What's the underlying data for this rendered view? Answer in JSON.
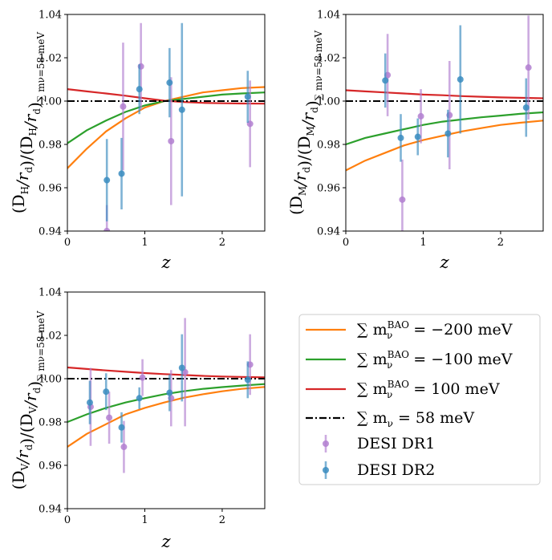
{
  "chart_data": {
    "type": "errorbar+line",
    "legend": {
      "placement": "bottom-right",
      "entries": [
        {
          "key": "orange",
          "math": "∑ m",
          "sub": "ν",
          "sup": "BAO",
          "rest": " = −200 meV"
        },
        {
          "key": "green",
          "math": "∑ m",
          "sub": "ν",
          "sup": "BAO",
          "rest": " = −100 meV"
        },
        {
          "key": "red",
          "math": "∑ m",
          "sub": "ν",
          "sup": "BAO",
          "rest": " = 100 meV"
        },
        {
          "key": "black",
          "math": "∑ m",
          "sub": "ν",
          "sup": "",
          "rest": " = 58 meV"
        },
        {
          "key": "dr1",
          "label": "DESI DR1"
        },
        {
          "key": "dr2",
          "label": "DESI DR2"
        }
      ]
    },
    "colors": {
      "orange": "#ff7f0e",
      "green": "#2ca02c",
      "red": "#d62728",
      "black": "#000000",
      "dr1": "#b27fd0",
      "dr2": "#3a8cc0"
    },
    "axes": {
      "xlim": [
        0,
        2.55
      ],
      "ylim": [
        0.94,
        1.04
      ],
      "xticks": [
        "0",
        "1",
        "2"
      ],
      "xtick_values": [
        0,
        1,
        2
      ],
      "yticks": [
        "0.94",
        "0.96",
        "0.98",
        "1.00",
        "1.02",
        "1.04"
      ],
      "ytick_values": [
        0.94,
        0.96,
        0.98,
        1.0,
        1.02,
        1.04
      ],
      "xlabel": "z"
    },
    "panels": [
      {
        "id": "DH",
        "ylabel_main": "(D",
        "ylabel_sub1": "H",
        "ylabel_mid": "/r",
        "ylabel_sub2": "d",
        "ylabel_mid2": ")/(D",
        "ylabel_sub3": "H",
        "ylabel_mid3": "/r",
        "ylabel_sub4": "d",
        "ylabel_end": ")",
        "ylabel_subscript": "∑ mν=58 meV",
        "curves": {
          "orange": {
            "x": [
              0,
              0.25,
              0.5,
              0.75,
              1.0,
              1.25,
              1.5,
              1.75,
              2.0,
              2.25,
              2.55
            ],
            "y": [
              0.969,
              0.978,
              0.986,
              0.992,
              0.997,
              1.0,
              1.002,
              1.004,
              1.005,
              1.006,
              1.0065
            ]
          },
          "green": {
            "x": [
              0,
              0.25,
              0.5,
              0.75,
              1.0,
              1.25,
              1.5,
              1.75,
              2.0,
              2.25,
              2.55
            ],
            "y": [
              0.9805,
              0.9865,
              0.991,
              0.995,
              0.998,
              1.0,
              1.001,
              1.002,
              1.003,
              1.0035,
              1.004
            ]
          },
          "red": {
            "x": [
              0,
              0.25,
              0.5,
              0.75,
              1.0,
              1.25,
              1.5,
              1.75,
              2.0,
              2.25,
              2.55
            ],
            "y": [
              1.0055,
              1.0045,
              1.0035,
              1.0025,
              1.0013,
              1.0002,
              0.9996,
              0.9992,
              0.999,
              0.9989,
              0.9988
            ]
          }
        },
        "dr1": [
          {
            "z": 0.51,
            "y": 0.94,
            "err": 0.012
          },
          {
            "z": 0.72,
            "y": 0.9975,
            "err": 0.0295
          },
          {
            "z": 0.95,
            "y": 1.016,
            "err": 0.02
          },
          {
            "z": 1.34,
            "y": 0.9815,
            "err": 0.0295
          },
          {
            "z": 2.36,
            "y": 0.9895,
            "err": 0.02
          }
        ],
        "dr2": [
          {
            "z": 0.51,
            "y": 0.9635,
            "err": 0.019
          },
          {
            "z": 0.7,
            "y": 0.9665,
            "err": 0.0165
          },
          {
            "z": 0.93,
            "y": 1.0055,
            "err": 0.0115
          },
          {
            "z": 1.32,
            "y": 1.0085,
            "err": 0.016
          },
          {
            "z": 1.48,
            "y": 0.996,
            "err": 0.04
          },
          {
            "z": 2.33,
            "y": 1.002,
            "err": 0.012
          }
        ]
      },
      {
        "id": "DM",
        "ylabel_main": "(D",
        "ylabel_sub1": "M",
        "ylabel_mid": "/r",
        "ylabel_sub2": "d",
        "ylabel_mid2": ")/(D",
        "ylabel_sub3": "M",
        "ylabel_mid3": "/r",
        "ylabel_sub4": "d",
        "ylabel_end": ")",
        "ylabel_subscript": "∑ mν=58 meV",
        "curves": {
          "orange": {
            "x": [
              0,
              0.25,
              0.5,
              0.75,
              1.0,
              1.25,
              1.5,
              1.75,
              2.0,
              2.25,
              2.55
            ],
            "y": [
              0.968,
              0.9725,
              0.976,
              0.9795,
              0.982,
              0.984,
              0.986,
              0.9875,
              0.989,
              0.99,
              0.991
            ]
          },
          "green": {
            "x": [
              0,
              0.25,
              0.5,
              0.75,
              1.0,
              1.25,
              1.5,
              1.75,
              2.0,
              2.25,
              2.55
            ],
            "y": [
              0.98,
              0.983,
              0.985,
              0.987,
              0.989,
              0.9905,
              0.9915,
              0.9925,
              0.9933,
              0.9941,
              0.9948
            ]
          },
          "red": {
            "x": [
              0,
              0.25,
              0.5,
              0.75,
              1.0,
              1.25,
              1.5,
              1.75,
              2.0,
              2.25,
              2.55
            ],
            "y": [
              1.005,
              1.0045,
              1.004,
              1.0035,
              1.003,
              1.0027,
              1.0023,
              1.002,
              1.0017,
              1.0015,
              1.0013
            ]
          }
        },
        "dr1": [
          {
            "z": 0.54,
            "y": 1.012,
            "err": 0.019
          },
          {
            "z": 0.73,
            "y": 0.9545,
            "err": 0.0185
          },
          {
            "z": 0.97,
            "y": 0.993,
            "err": 0.0125
          },
          {
            "z": 1.34,
            "y": 0.9935,
            "err": 0.025
          },
          {
            "z": 2.36,
            "y": 1.0155,
            "err": 0.024
          }
        ],
        "dr2": [
          {
            "z": 0.51,
            "y": 1.0095,
            "err": 0.0125
          },
          {
            "z": 0.71,
            "y": 0.983,
            "err": 0.011
          },
          {
            "z": 0.93,
            "y": 0.9835,
            "err": 0.0085
          },
          {
            "z": 1.32,
            "y": 0.985,
            "err": 0.011
          },
          {
            "z": 1.48,
            "y": 1.01,
            "err": 0.025
          },
          {
            "z": 2.33,
            "y": 0.997,
            "err": 0.0135
          }
        ]
      },
      {
        "id": "DV",
        "ylabel_main": "(D",
        "ylabel_sub1": "V",
        "ylabel_mid": "/r",
        "ylabel_sub2": "d",
        "ylabel_mid2": ")/(D",
        "ylabel_sub3": "V",
        "ylabel_mid3": "/r",
        "ylabel_sub4": "d",
        "ylabel_end": ")",
        "ylabel_subscript": "∑ mν=58 meV",
        "curves": {
          "orange": {
            "x": [
              0,
              0.25,
              0.5,
              0.75,
              1.0,
              1.25,
              1.5,
              1.75,
              2.0,
              2.25,
              2.55
            ],
            "y": [
              0.9685,
              0.9745,
              0.979,
              0.9835,
              0.9865,
              0.989,
              0.9912,
              0.9928,
              0.9942,
              0.9953,
              0.9962
            ]
          },
          "green": {
            "x": [
              0,
              0.25,
              0.5,
              0.75,
              1.0,
              1.25,
              1.5,
              1.75,
              2.0,
              2.25,
              2.55
            ],
            "y": [
              0.98,
              0.9835,
              0.9865,
              0.989,
              0.991,
              0.9928,
              0.9942,
              0.9953,
              0.9961,
              0.9968,
              0.9975
            ]
          },
          "red": {
            "x": [
              0,
              0.25,
              0.5,
              0.75,
              1.0,
              1.25,
              1.5,
              1.75,
              2.0,
              2.25,
              2.55
            ],
            "y": [
              1.0052,
              1.0045,
              1.0038,
              1.0032,
              1.0026,
              1.0021,
              1.0017,
              1.0013,
              1.001,
              1.0008,
              1.0006
            ]
          }
        },
        "dr1": [
          {
            "z": 0.3,
            "y": 0.987,
            "err": 0.018
          },
          {
            "z": 0.54,
            "y": 0.982,
            "err": 0.012
          },
          {
            "z": 0.73,
            "y": 0.9685,
            "err": 0.012
          },
          {
            "z": 0.97,
            "y": 1.0005,
            "err": 0.0085
          },
          {
            "z": 1.34,
            "y": 0.991,
            "err": 0.013
          },
          {
            "z": 1.52,
            "y": 1.003,
            "err": 0.025
          },
          {
            "z": 2.36,
            "y": 1.0065,
            "err": 0.014
          }
        ],
        "dr2": [
          {
            "z": 0.29,
            "y": 0.989,
            "err": 0.01
          },
          {
            "z": 0.5,
            "y": 0.994,
            "err": 0.0085
          },
          {
            "z": 0.7,
            "y": 0.9775,
            "err": 0.007
          },
          {
            "z": 0.93,
            "y": 0.991,
            "err": 0.005
          },
          {
            "z": 1.32,
            "y": 0.9935,
            "err": 0.0085
          },
          {
            "z": 1.48,
            "y": 1.005,
            "err": 0.0155
          },
          {
            "z": 2.33,
            "y": 0.9995,
            "err": 0.0085
          }
        ]
      }
    ]
  }
}
